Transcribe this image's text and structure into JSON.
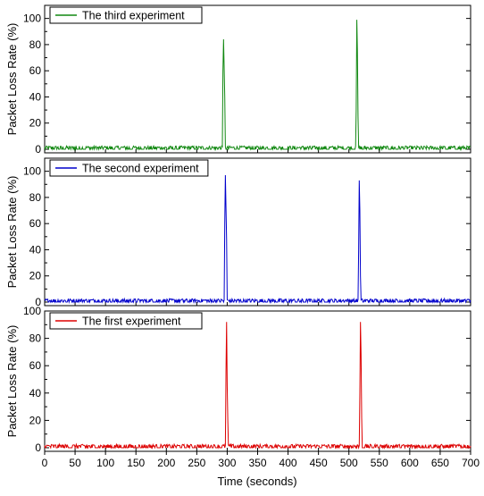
{
  "chart_data": {
    "type": "line",
    "xlabel": "Time (seconds)",
    "xlim": [
      0,
      700
    ],
    "x_ticks": [
      0,
      50,
      100,
      150,
      200,
      250,
      300,
      350,
      400,
      450,
      500,
      550,
      600,
      650,
      700
    ],
    "x_tick_labels": [
      "0",
      "50",
      "100",
      "150",
      "200",
      "250",
      "300",
      "350",
      "400",
      "450",
      "500",
      "550",
      "600",
      "650",
      "700"
    ],
    "legend_placement": "top-left",
    "grid": false,
    "panels": [
      {
        "ylabel": "Packet Loss Rate (%)",
        "ylim": [
          0,
          110
        ],
        "y_ticks": [
          0,
          20,
          40,
          60,
          80,
          100
        ],
        "y_tick_labels": [
          "0",
          "20",
          "40",
          "60",
          "80",
          "100"
        ],
        "series": [
          {
            "name": "The third experiment",
            "color": "#118811",
            "baseline_noise_max": 2.5,
            "spikes": [
              {
                "x": 293,
                "y": 60
              },
              {
                "x": 294,
                "y": 84
              },
              {
                "x": 295,
                "y": 62
              },
              {
                "x": 296,
                "y": 40
              },
              {
                "x": 512,
                "y": 30
              },
              {
                "x": 513,
                "y": 99
              },
              {
                "x": 514,
                "y": 75
              },
              {
                "x": 515,
                "y": 25
              }
            ]
          }
        ]
      },
      {
        "ylabel": "Packet Loss Rate (%)",
        "ylim": [
          0,
          110
        ],
        "y_ticks": [
          0,
          20,
          40,
          60,
          80,
          100
        ],
        "y_tick_labels": [
          "0",
          "20",
          "40",
          "60",
          "80",
          "100"
        ],
        "series": [
          {
            "name": "The second experiment",
            "color": "#0000cc",
            "baseline_noise_max": 2.5,
            "spikes": [
              {
                "x": 296,
                "y": 60
              },
              {
                "x": 297,
                "y": 97
              },
              {
                "x": 298,
                "y": 72
              },
              {
                "x": 299,
                "y": 48
              },
              {
                "x": 516,
                "y": 40
              },
              {
                "x": 517,
                "y": 93
              },
              {
                "x": 518,
                "y": 70
              },
              {
                "x": 519,
                "y": 20
              }
            ]
          }
        ]
      },
      {
        "ylabel": "Packet Loss Rate (%)",
        "ylim": [
          0,
          100
        ],
        "y_ticks": [
          0,
          20,
          40,
          60,
          80,
          100
        ],
        "y_tick_labels": [
          "0",
          "20",
          "40",
          "60",
          "80",
          "100"
        ],
        "series": [
          {
            "name": "The first experiment",
            "color": "#dd0000",
            "baseline_noise_max": 2.5,
            "spikes": [
              {
                "x": 298,
                "y": 55
              },
              {
                "x": 299,
                "y": 92
              },
              {
                "x": 300,
                "y": 45
              },
              {
                "x": 301,
                "y": 20
              },
              {
                "x": 518,
                "y": 40
              },
              {
                "x": 519,
                "y": 92
              },
              {
                "x": 520,
                "y": 68
              },
              {
                "x": 521,
                "y": 22
              }
            ]
          }
        ]
      }
    ]
  }
}
